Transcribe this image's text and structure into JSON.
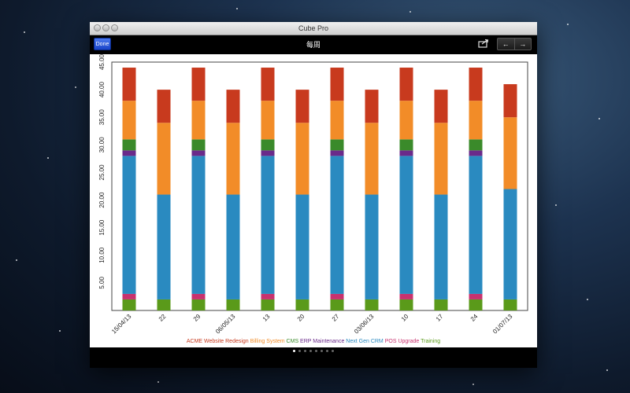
{
  "window": {
    "title": "Cube Pro"
  },
  "toolbar": {
    "done_label": "Done",
    "title": "每周",
    "share_icon": "share-icon",
    "prev_label": "←",
    "next_label": "→"
  },
  "pager": {
    "count": 8,
    "active_index": 0
  },
  "chart_data": {
    "type": "bar",
    "stacked": true,
    "categories": [
      "15/04/13",
      "22",
      "29",
      "06/05/13",
      "13",
      "20",
      "27",
      "03/06/13",
      "10",
      "17",
      "24",
      "01/07/13"
    ],
    "ylim": [
      0,
      45
    ],
    "yticks": [
      "5.00",
      "10.00",
      "15.00",
      "20.00",
      "25.00",
      "30.00",
      "35.00",
      "40.00",
      "45.00"
    ],
    "ytick_values": [
      5,
      10,
      15,
      20,
      25,
      30,
      35,
      40,
      45
    ],
    "title": "",
    "xlabel": "",
    "ylabel": "",
    "legend_position": "bottom",
    "series": [
      {
        "name": "Training",
        "color": "#5a9a1a",
        "values": [
          2,
          2,
          2,
          2,
          2,
          2,
          2,
          2,
          2,
          2,
          2,
          2
        ]
      },
      {
        "name": "POS Upgrade",
        "color": "#c8326e",
        "values": [
          1,
          0,
          1,
          0,
          1,
          0,
          1,
          0,
          1,
          0,
          1,
          0
        ]
      },
      {
        "name": "Next Gen CRM",
        "color": "#2a8ac0",
        "values": [
          25,
          19,
          25,
          19,
          25,
          19,
          25,
          19,
          25,
          19,
          25,
          20
        ]
      },
      {
        "name": "ERP Maintenance",
        "color": "#6a2a8a",
        "values": [
          1,
          0,
          1,
          0,
          1,
          0,
          1,
          0,
          1,
          0,
          1,
          0
        ]
      },
      {
        "name": "CMS",
        "color": "#3a8a2a",
        "values": [
          2,
          0,
          2,
          0,
          2,
          0,
          2,
          0,
          2,
          0,
          2,
          0
        ]
      },
      {
        "name": "Billing System",
        "color": "#f28c28",
        "values": [
          7,
          13,
          7,
          13,
          7,
          13,
          7,
          13,
          7,
          13,
          7,
          13
        ]
      },
      {
        "name": "ACME Website Redesign",
        "color": "#c83a1e",
        "values": [
          6,
          6,
          6,
          6,
          6,
          6,
          6,
          6,
          6,
          6,
          6,
          6
        ]
      }
    ],
    "legend_order": [
      "ACME Website Redesign",
      "Billing System",
      "CMS",
      "ERP Maintenance",
      "Next Gen CRM",
      "POS Upgrade",
      "Training"
    ]
  }
}
